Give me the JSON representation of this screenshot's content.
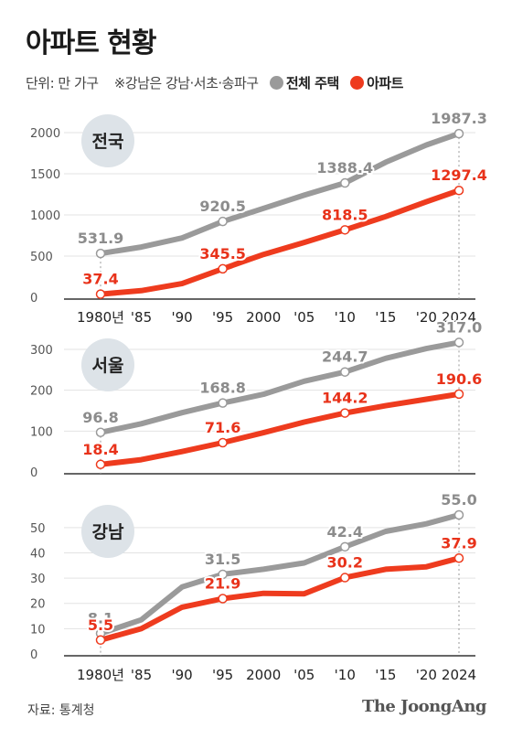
{
  "title": "아파트 현황",
  "subtitle": {
    "unit": "단위: 만 가구",
    "note": "※강남은 강남·서초·송파구"
  },
  "legend": [
    {
      "name": "전체 주택",
      "color": "#9a9a9a"
    },
    {
      "name": "아파트",
      "color": "#ee3b1e"
    }
  ],
  "x_labels": [
    "1980년",
    "'85",
    "'90",
    "'95",
    "2000",
    "'05",
    "'10",
    "'15",
    "'20",
    "2024"
  ],
  "colors": {
    "total": "#9a9a9a",
    "apartment": "#ee3b1e",
    "region_circle": "#dde3e8"
  },
  "chart_data": [
    {
      "type": "line",
      "region": "전국",
      "x": [
        1980,
        1985,
        1990,
        1995,
        2000,
        2005,
        2010,
        2015,
        2020,
        2024
      ],
      "ylim": [
        0,
        2000
      ],
      "yticks": [
        0,
        500,
        1000,
        1500,
        2000
      ],
      "series": [
        {
          "name": "전체 주택",
          "values": [
            531.9,
            610,
            720,
            920.5,
            1080,
            1240,
            1388.4,
            1640,
            1850,
            1987.3
          ],
          "labels": [
            {
              "index": 0,
              "text": "531.9"
            },
            {
              "index": 3,
              "text": "920.5"
            },
            {
              "index": 6,
              "text": "1388.4"
            },
            {
              "index": 9,
              "text": "1987.3"
            }
          ]
        },
        {
          "name": "아파트",
          "values": [
            37.4,
            80,
            165,
            345.5,
            520,
            665,
            818.5,
            980,
            1160,
            1297.4
          ],
          "labels": [
            {
              "index": 0,
              "text": "37.4"
            },
            {
              "index": 3,
              "text": "345.5"
            },
            {
              "index": 6,
              "text": "818.5"
            },
            {
              "index": 9,
              "text": "1297.4"
            }
          ]
        }
      ]
    },
    {
      "type": "line",
      "region": "서울",
      "x": [
        1980,
        1985,
        1990,
        1995,
        2000,
        2005,
        2010,
        2015,
        2020,
        2024
      ],
      "ylim": [
        0,
        300
      ],
      "yticks": [
        0,
        100,
        200,
        300
      ],
      "series": [
        {
          "name": "전체 주택",
          "values": [
            96.8,
            118,
            145,
            168.8,
            190,
            222,
            244.7,
            278,
            302,
            317.0
          ],
          "labels": [
            {
              "index": 0,
              "text": "96.8"
            },
            {
              "index": 3,
              "text": "168.8"
            },
            {
              "index": 6,
              "text": "244.7"
            },
            {
              "index": 9,
              "text": "317.0"
            }
          ]
        },
        {
          "name": "아파트",
          "values": [
            18.4,
            30,
            50,
            71.6,
            96,
            122,
            144.2,
            162,
            178,
            190.6
          ],
          "labels": [
            {
              "index": 0,
              "text": "18.4"
            },
            {
              "index": 3,
              "text": "71.6"
            },
            {
              "index": 6,
              "text": "144.2"
            },
            {
              "index": 9,
              "text": "190.6"
            }
          ]
        }
      ]
    },
    {
      "type": "line",
      "region": "강남",
      "x": [
        1980,
        1985,
        1990,
        1995,
        2000,
        2005,
        2010,
        2015,
        2020,
        2024
      ],
      "ylim": [
        0,
        55
      ],
      "yticks": [
        0,
        10,
        20,
        30,
        40,
        50
      ],
      "series": [
        {
          "name": "전체 주택",
          "values": [
            8.1,
            13.5,
            26.5,
            31.5,
            33.5,
            36,
            42.4,
            48.5,
            51.5,
            55.0
          ],
          "labels": [
            {
              "index": 0,
              "text": "8.1"
            },
            {
              "index": 3,
              "text": "31.5"
            },
            {
              "index": 6,
              "text": "42.4"
            },
            {
              "index": 9,
              "text": "55.0"
            }
          ]
        },
        {
          "name": "아파트",
          "values": [
            5.5,
            10,
            18.5,
            21.9,
            24,
            23.8,
            30.2,
            33.5,
            34.5,
            37.9
          ],
          "labels": [
            {
              "index": 0,
              "text": "5.5"
            },
            {
              "index": 3,
              "text": "21.9"
            },
            {
              "index": 6,
              "text": "30.2"
            },
            {
              "index": 9,
              "text": "37.9"
            }
          ]
        }
      ]
    }
  ],
  "source": "자료: 통계청",
  "brand": "The JoongAng"
}
